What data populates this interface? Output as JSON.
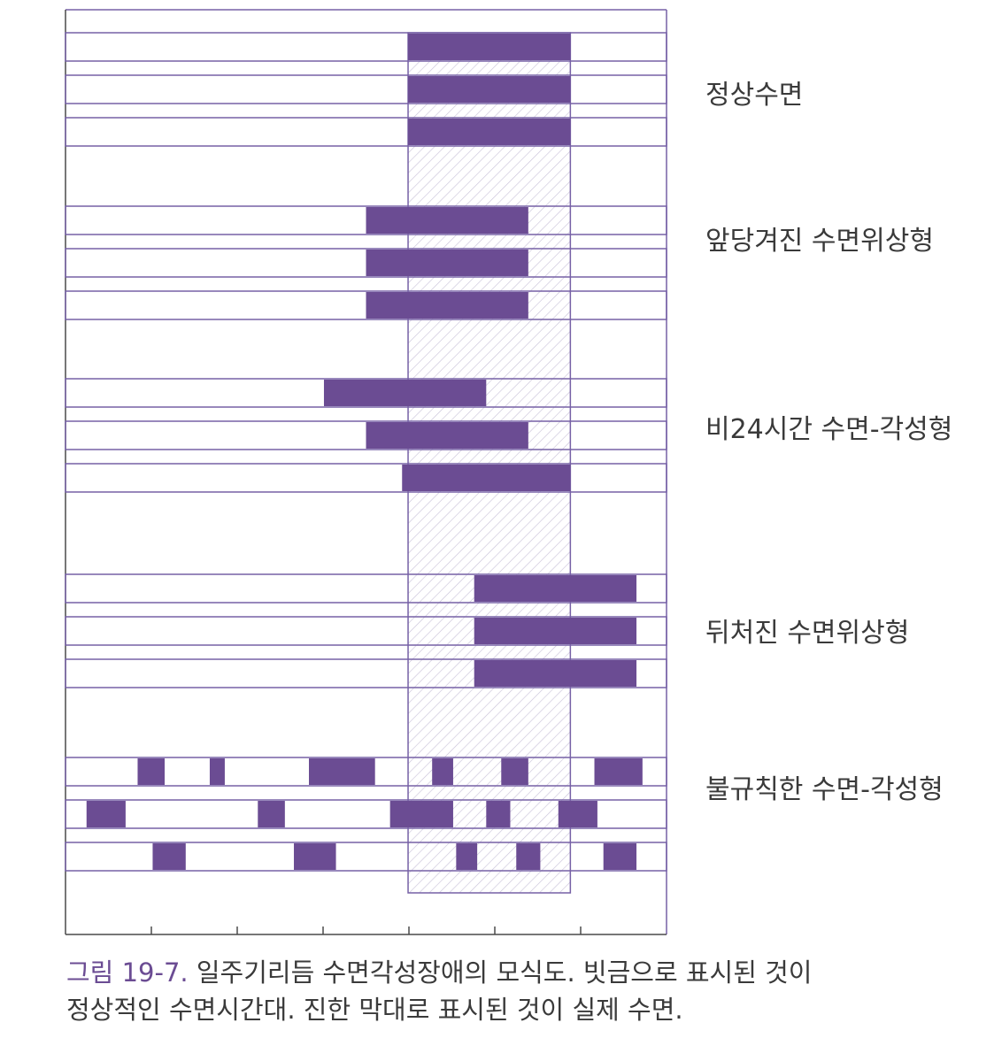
{
  "diagram": {
    "colors": {
      "sleep_bar": "#6b4c93",
      "row_border": "#7661a6",
      "axis": "#4a4a4a",
      "hatch": "#c8c0d8"
    },
    "normal_sleep_window": {
      "start": 0.57,
      "end": 0.84
    },
    "groups": [
      {
        "label": "정상수면",
        "rows": [
          [
            [
              0.57,
              0.84
            ]
          ],
          [
            [
              0.57,
              0.84
            ]
          ],
          [
            [
              0.57,
              0.84
            ]
          ]
        ]
      },
      {
        "label": "앞당겨진 수면위상형",
        "rows": [
          [
            [
              0.5,
              0.77
            ]
          ],
          [
            [
              0.5,
              0.77
            ]
          ],
          [
            [
              0.5,
              0.77
            ]
          ]
        ]
      },
      {
        "label": "비24시간 수면-각성형",
        "rows": [
          [
            [
              0.43,
              0.7
            ]
          ],
          [
            [
              0.5,
              0.77
            ]
          ],
          [
            [
              0.56,
              0.84
            ]
          ]
        ]
      },
      {
        "label": "뒤처진 수면위상형",
        "rows": [
          [
            [
              0.68,
              0.95
            ]
          ],
          [
            [
              0.68,
              0.95
            ]
          ],
          [
            [
              0.68,
              0.95
            ]
          ]
        ]
      },
      {
        "label": "불규칙한 수면-각성형",
        "rows": [
          [
            [
              0.12,
              0.165
            ],
            [
              0.24,
              0.265
            ],
            [
              0.405,
              0.515
            ],
            [
              0.61,
              0.645
            ],
            [
              0.725,
              0.77
            ],
            [
              0.88,
              0.96
            ]
          ],
          [
            [
              0.035,
              0.1
            ],
            [
              0.32,
              0.365
            ],
            [
              0.54,
              0.645
            ],
            [
              0.7,
              0.74
            ],
            [
              0.82,
              0.885
            ]
          ],
          [
            [
              0.145,
              0.2
            ],
            [
              0.38,
              0.45
            ],
            [
              0.65,
              0.685
            ],
            [
              0.75,
              0.79
            ],
            [
              0.895,
              0.95
            ]
          ]
        ]
      }
    ]
  },
  "caption": {
    "figure_number": "그림 19-7.",
    "line1": "일주기리듬 수면각성장애의 모식도. 빗금으로 표시된 것이",
    "line2": "정상적인 수면시간대. 진한 막대로 표시된 것이 실제 수면."
  }
}
